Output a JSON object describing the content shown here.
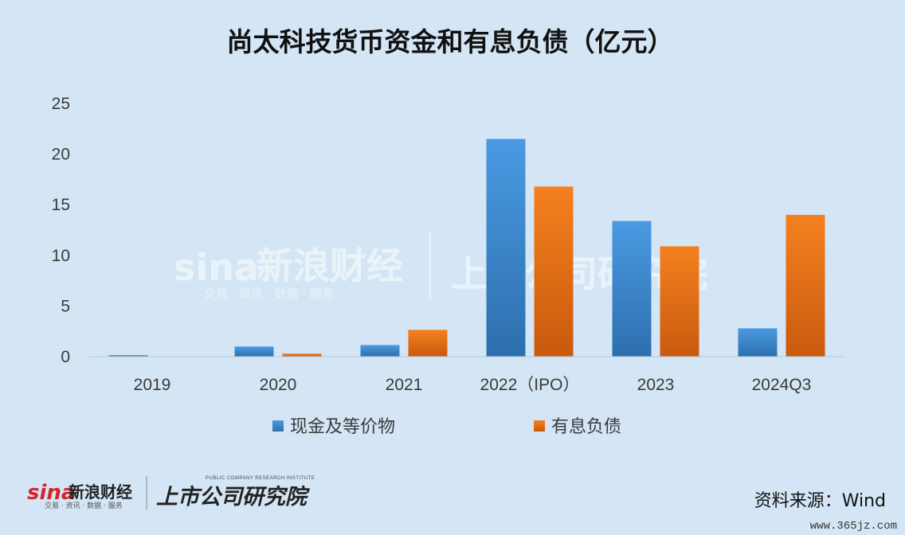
{
  "chart_data": {
    "type": "bar",
    "title": "尚太科技货币资金和有息负债（亿元）",
    "categories": [
      "2019",
      "2020",
      "2021",
      "2022（IPO）",
      "2023",
      "2024Q3"
    ],
    "series": [
      {
        "name": "现金及等价物",
        "color": "#3a87cf",
        "values": [
          0.15,
          1.0,
          1.15,
          21.5,
          13.4,
          2.8
        ]
      },
      {
        "name": "有息负债",
        "color": "#ee7318",
        "values": [
          0,
          0.3,
          2.65,
          16.8,
          10.9,
          14.0
        ]
      }
    ],
    "yticks": [
      "0",
      "5",
      "10",
      "15",
      "20",
      "25"
    ],
    "ylim": [
      0,
      25
    ],
    "grid": false,
    "legend_position": "bottom"
  },
  "source_text": "资料来源：Wind",
  "watermark": {
    "sina_latin": "sina",
    "sina_cn": "新浪财经",
    "sina_sub": "交易 · 资讯 · 数据 · 服务",
    "institute": "上市公司研究院"
  },
  "footer_logo": {
    "sina_latin": "sina",
    "sina_cn": "新浪财经",
    "sina_sub": "交易 · 资讯 · 数据 · 服务",
    "institute": "上市公司研究院",
    "institute_en": "PUBLIC COMPANY RESEARCH INSTITUTE"
  },
  "site_watermark": "www.365jz.com"
}
